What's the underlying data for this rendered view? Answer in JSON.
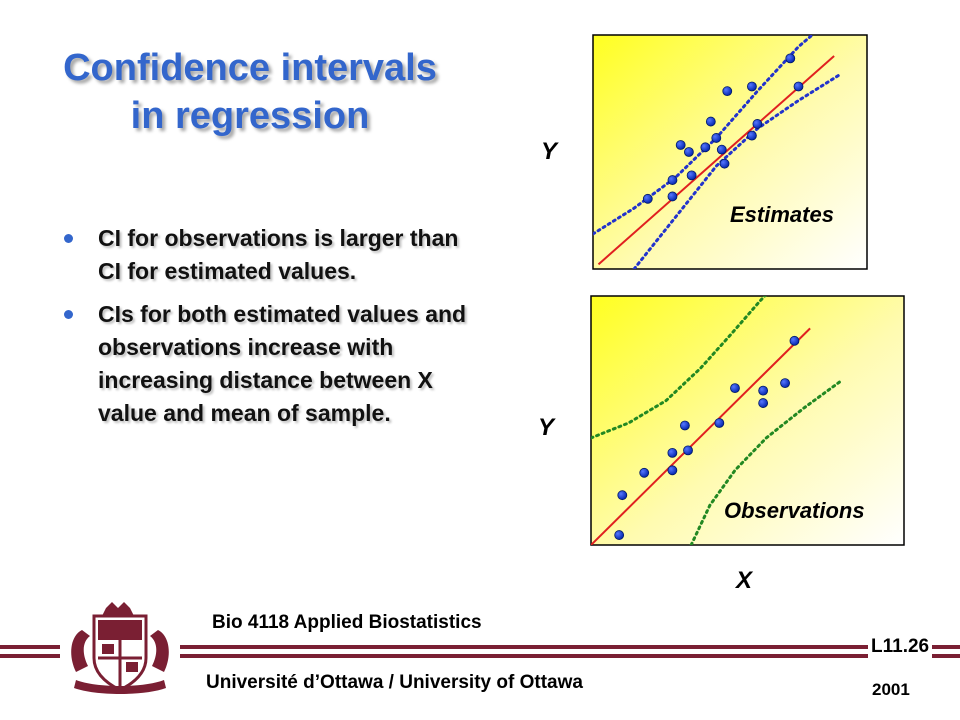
{
  "title_line1": "Confidence intervals",
  "title_line2": "in regression",
  "bullets": [
    "CI for observations is larger than CI for estimated values.",
    "CIs for both estimated values and observations increase with increasing distance between X value and mean of sample."
  ],
  "footer": {
    "course": "Bio 4118 Applied Biostatistics",
    "lecture": "L11.26",
    "university": "Université d’Ottawa / University of Ottawa",
    "year": "2001"
  },
  "colors": {
    "title": "#3366cc",
    "bullet": "#3366cc",
    "regression_line": "#e02020",
    "ci_estimates": "#2233cc",
    "ci_observations": "#228822",
    "points": "#0033cc",
    "footer_bar": "#7a1f33"
  },
  "chart_data": [
    {
      "type": "scatter",
      "title": "",
      "annotation": "Estimates",
      "xlabel": "",
      "ylabel": "Y",
      "xlim": [
        0,
        10
      ],
      "ylim": [
        0,
        10
      ],
      "grid": false,
      "points": [
        {
          "x": 2.0,
          "y": 3.0
        },
        {
          "x": 2.9,
          "y": 3.8
        },
        {
          "x": 2.9,
          "y": 3.1
        },
        {
          "x": 3.2,
          "y": 5.3
        },
        {
          "x": 3.5,
          "y": 5.0
        },
        {
          "x": 3.6,
          "y": 4.0
        },
        {
          "x": 4.1,
          "y": 5.2
        },
        {
          "x": 4.3,
          "y": 6.3
        },
        {
          "x": 4.5,
          "y": 5.6
        },
        {
          "x": 4.7,
          "y": 5.1
        },
        {
          "x": 4.8,
          "y": 4.5
        },
        {
          "x": 4.9,
          "y": 7.6
        },
        {
          "x": 5.8,
          "y": 5.7
        },
        {
          "x": 5.8,
          "y": 7.8
        },
        {
          "x": 6.0,
          "y": 6.2
        },
        {
          "x": 7.2,
          "y": 9.0
        },
        {
          "x": 7.5,
          "y": 7.8
        }
      ],
      "regression_line": {
        "x": [
          0.2,
          8.8
        ],
        "y": [
          0.2,
          9.1
        ]
      },
      "ci_upper": {
        "x": [
          0.0,
          1.5,
          3.0,
          4.5,
          6.0,
          7.5,
          8.3
        ],
        "y": [
          1.5,
          2.6,
          3.9,
          5.6,
          7.6,
          9.5,
          10.3
        ]
      },
      "ci_lower": {
        "x": [
          1.5,
          3.0,
          4.5,
          6.0,
          7.5,
          9.0
        ],
        "y": [
          0.0,
          2.2,
          4.4,
          6.0,
          7.2,
          8.3
        ]
      }
    },
    {
      "type": "scatter",
      "title": "",
      "annotation": "Observations",
      "xlabel": "X",
      "ylabel": "Y",
      "xlim": [
        0,
        10
      ],
      "ylim": [
        0,
        10
      ],
      "grid": false,
      "points": [
        {
          "x": 0.9,
          "y": 0.4
        },
        {
          "x": 1.0,
          "y": 2.0
        },
        {
          "x": 1.7,
          "y": 2.9
        },
        {
          "x": 2.6,
          "y": 3.0
        },
        {
          "x": 2.6,
          "y": 3.7
        },
        {
          "x": 3.0,
          "y": 4.8
        },
        {
          "x": 3.1,
          "y": 3.8
        },
        {
          "x": 4.1,
          "y": 4.9
        },
        {
          "x": 4.6,
          "y": 6.3
        },
        {
          "x": 5.5,
          "y": 5.7
        },
        {
          "x": 5.5,
          "y": 6.2
        },
        {
          "x": 6.2,
          "y": 6.5
        },
        {
          "x": 6.5,
          "y": 8.2
        }
      ],
      "regression_line": {
        "x": [
          0.0,
          7.0
        ],
        "y": [
          0.0,
          8.7
        ]
      },
      "ci_upper": {
        "x": [
          0.0,
          1.2,
          2.4,
          3.5,
          4.5,
          5.4,
          5.7
        ],
        "y": [
          4.3,
          4.9,
          5.8,
          7.1,
          8.5,
          9.8,
          10.2
        ]
      },
      "ci_lower": {
        "x": [
          3.2,
          3.8,
          4.6,
          5.6,
          6.8,
          8.0
        ],
        "y": [
          0.0,
          1.6,
          3.0,
          4.3,
          5.5,
          6.6
        ]
      }
    }
  ]
}
